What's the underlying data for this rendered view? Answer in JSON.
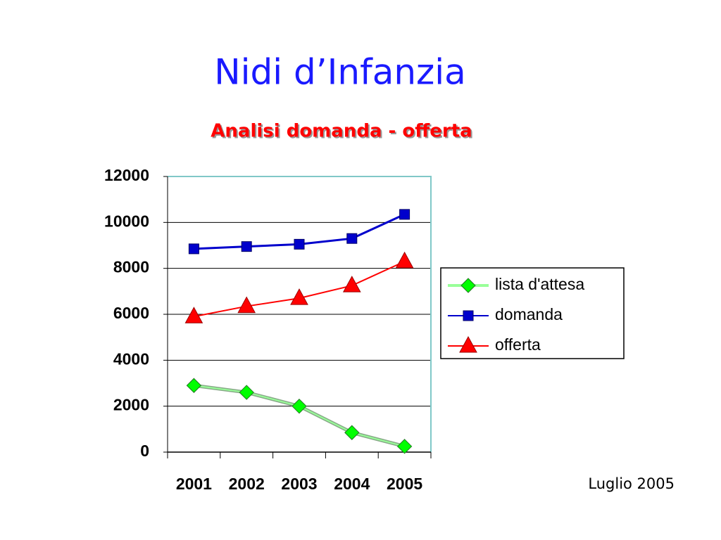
{
  "chart_data": {
    "type": "line",
    "title": "Nidi d’Infanzia",
    "subtitle": "Analisi domanda - offerta",
    "annotation": "Luglio 2005",
    "categories": [
      "2001",
      "2002",
      "2003",
      "2004",
      "2005"
    ],
    "series": [
      {
        "name": "lista d'attesa",
        "color": "#00ff00",
        "marker": "diamond",
        "values": [
          2900,
          2600,
          2000,
          850,
          250
        ]
      },
      {
        "name": "domanda",
        "color": "#0000cc",
        "marker": "square",
        "values": [
          8850,
          8950,
          9050,
          9300,
          10350
        ]
      },
      {
        "name": "offerta",
        "color": "#ff0000",
        "marker": "triangle",
        "values": [
          5900,
          6350,
          6700,
          7250,
          8300
        ]
      }
    ],
    "ylim": [
      0,
      12000
    ],
    "yticks": [
      0,
      2000,
      4000,
      6000,
      8000,
      10000,
      12000
    ],
    "grid": true,
    "legend": "right"
  }
}
